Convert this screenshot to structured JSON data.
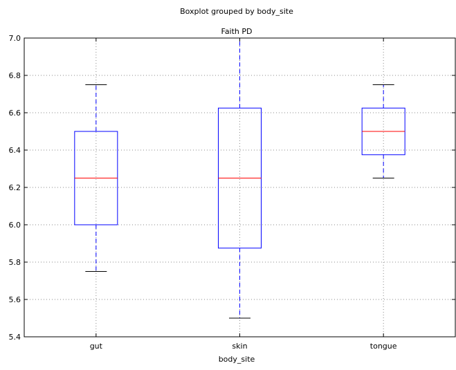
{
  "chart_data": {
    "type": "boxplot",
    "suptitle": "Boxplot grouped by body_site",
    "title": "Faith PD",
    "xlabel": "body_site",
    "ylabel": "",
    "categories": [
      "gut",
      "skin",
      "tongue"
    ],
    "boxes": [
      {
        "category": "gut",
        "whisker_low": 5.75,
        "q1": 6.0,
        "median": 6.25,
        "q3": 6.5,
        "whisker_high": 6.75
      },
      {
        "category": "skin",
        "whisker_low": 5.5,
        "q1": 5.875,
        "median": 6.25,
        "q3": 6.625,
        "whisker_high": 7.0
      },
      {
        "category": "tongue",
        "whisker_low": 6.25,
        "q1": 6.375,
        "median": 6.5,
        "q3": 6.625,
        "whisker_high": 6.75
      }
    ],
    "ylim": [
      5.4,
      7.0
    ],
    "yticks": [
      5.4,
      5.6,
      5.8,
      6.0,
      6.2,
      6.4,
      6.6,
      6.8,
      7.0
    ],
    "ytick_labels": [
      "5.4",
      "5.6",
      "5.8",
      "6.0",
      "6.2",
      "6.4",
      "6.6",
      "6.8",
      "7.0"
    ],
    "grid": true,
    "colors": {
      "box": "#0000ff",
      "median": "#ff0000",
      "whisker": "#0000ff",
      "cap": "#000000",
      "grid": "#888888"
    }
  }
}
